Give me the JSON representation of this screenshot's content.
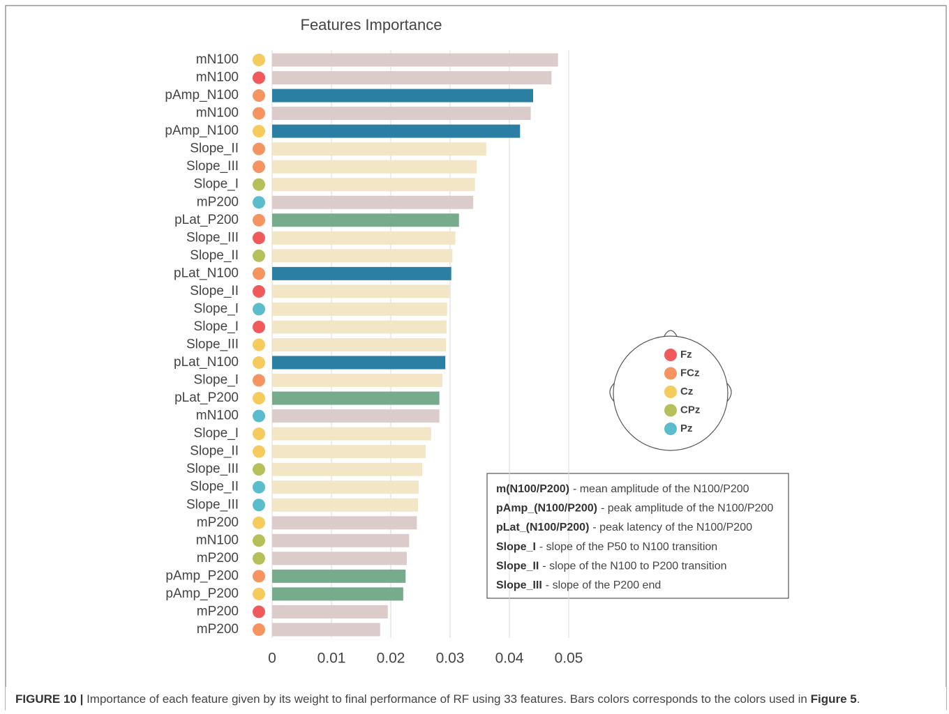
{
  "chart_data": {
    "type": "bar",
    "orientation": "horizontal",
    "title": "Features Importance",
    "categories": [
      "mN100",
      "mN100",
      "pAmp_N100",
      "mN100",
      "pAmp_N100",
      "Slope_II",
      "Slope_III",
      "Slope_I",
      "mP200",
      "pLat_P200",
      "Slope_III",
      "Slope_II",
      "pLat_N100",
      "Slope_II",
      "Slope_I",
      "Slope_I",
      "Slope_III",
      "pLat_N100",
      "Slope_I",
      "pLat_P200",
      "mN100",
      "Slope_I",
      "Slope_II",
      "Slope_III",
      "Slope_II",
      "Slope_III",
      "mP200",
      "mN100",
      "mP200",
      "pAmp_P200",
      "pAmp_P200",
      "mP200",
      "mP200"
    ],
    "values": [
      0.0482,
      0.0471,
      0.044,
      0.0436,
      0.0418,
      0.0361,
      0.0345,
      0.0342,
      0.0339,
      0.0315,
      0.0309,
      0.0304,
      0.0302,
      0.0299,
      0.0295,
      0.0294,
      0.0293,
      0.0292,
      0.0287,
      0.0282,
      0.0282,
      0.0268,
      0.0259,
      0.0253,
      0.0247,
      0.0246,
      0.0244,
      0.0231,
      0.0227,
      0.0225,
      0.0221,
      0.0195,
      0.0182
    ],
    "bar_colors": [
      "#dccbcb",
      "#dccbcb",
      "#2a7fa3",
      "#dccbcb",
      "#2a7fa3",
      "#f2e6c6",
      "#f2e6c6",
      "#f2e6c6",
      "#dccbcb",
      "#76ab8b",
      "#f2e6c6",
      "#f2e6c6",
      "#2a7fa3",
      "#f2e6c6",
      "#f2e6c6",
      "#f2e6c6",
      "#f2e6c6",
      "#2a7fa3",
      "#f2e6c6",
      "#76ab8b",
      "#dccbcb",
      "#f2e6c6",
      "#f2e6c6",
      "#f2e6c6",
      "#f2e6c6",
      "#f2e6c6",
      "#dccbcb",
      "#dccbcb",
      "#dccbcb",
      "#76ab8b",
      "#76ab8b",
      "#dccbcb",
      "#dccbcb"
    ],
    "row_electrode": [
      "Cz",
      "Fz",
      "FCz",
      "FCz",
      "Cz",
      "FCz",
      "FCz",
      "CPz",
      "Pz",
      "FCz",
      "Fz",
      "CPz",
      "FCz",
      "Fz",
      "Pz",
      "Fz",
      "Cz",
      "Cz",
      "FCz",
      "Cz",
      "Pz",
      "Cz",
      "Cz",
      "CPz",
      "Pz",
      "Pz",
      "Cz",
      "CPz",
      "CPz",
      "FCz",
      "Cz",
      "Fz",
      "FCz"
    ],
    "electrodes": [
      {
        "name": "Fz",
        "color": "#f05a5b"
      },
      {
        "name": "FCz",
        "color": "#f49460"
      },
      {
        "name": "Cz",
        "color": "#f6cb5d"
      },
      {
        "name": "CPz",
        "color": "#b5c05b"
      },
      {
        "name": "Pz",
        "color": "#5bbccb"
      }
    ],
    "xlim": [
      0,
      0.05
    ],
    "xticks": [
      0,
      0.01,
      0.02,
      0.03,
      0.04,
      0.05
    ],
    "grid": true,
    "definitions": [
      {
        "term": "m(N100/P200)",
        "text": "- mean amplitude of the N100/P200"
      },
      {
        "term": "pAmp_(N100/P200)",
        "text": "- peak amplitude of the N100/P200"
      },
      {
        "term": "pLat_(N100/P200)",
        "text": "- peak latency of the N100/P200"
      },
      {
        "term": "Slope_I",
        "text": "- slope of the P50 to N100 transition"
      },
      {
        "term": "Slope_II",
        "text": "- slope of the N100 to P200 transition"
      },
      {
        "term": "Slope_III",
        "text": "- slope of the P200 end"
      }
    ]
  },
  "caption": {
    "label": "FIGURE 10 |",
    "text": " Importance of each feature given by its weight to final performance of RF using 33 features. Bars colors corresponds to the colors used in ",
    "ref": "Figure 5",
    "end": "."
  }
}
